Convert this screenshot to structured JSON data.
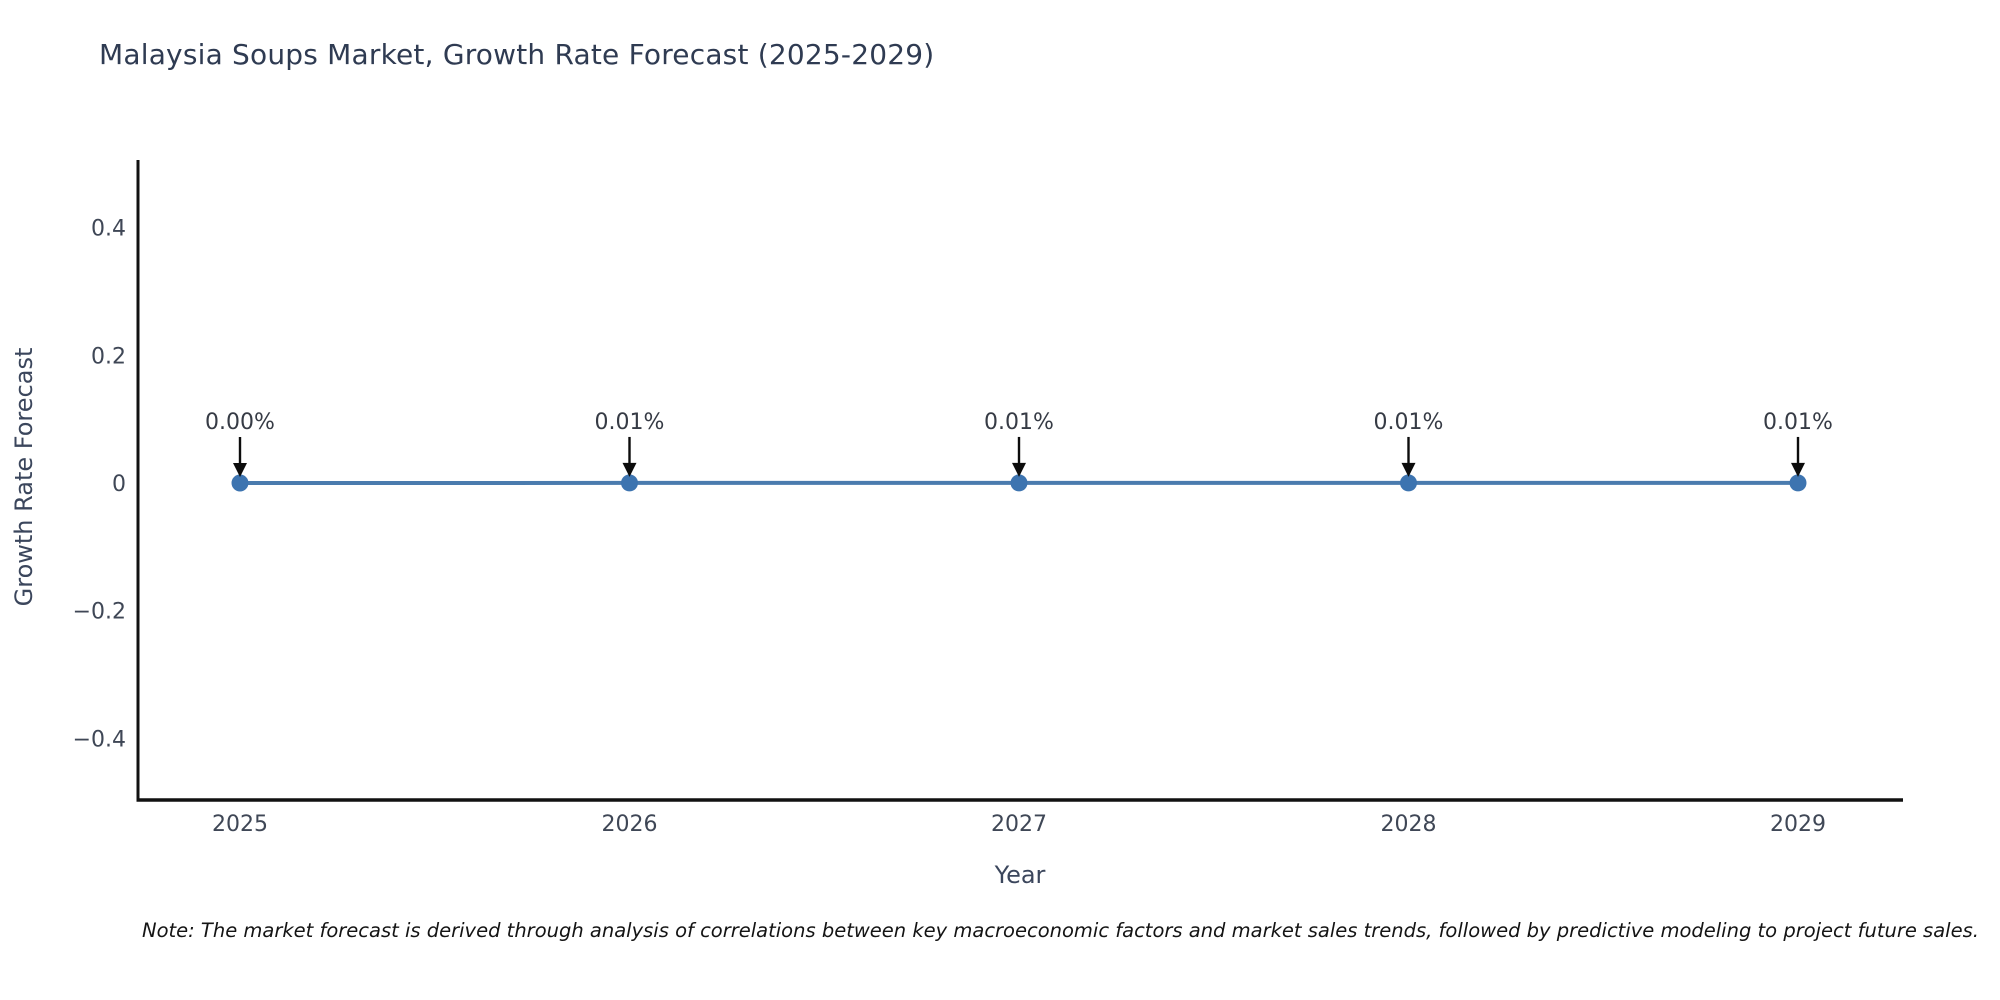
{
  "note": "Note: The market forecast is derived through analysis of correlations between key macroeconomic factors and market sales trends, followed by predictive modeling to project future sales.",
  "colors": {
    "background": "#ffffff",
    "axis": "#111111",
    "line": "#4a7bae",
    "marker": "#3d74b0",
    "tick_text": "#3f4756",
    "axis_label_text": "#3b465c",
    "title_text": "#2f3b52",
    "annotation_text": "#363b45",
    "arrow": "#0c0c0c",
    "note_text": "#141414"
  },
  "chart_data": {
    "type": "line",
    "title": "Malaysia Soups Market, Growth Rate Forecast (2025-2029)",
    "xlabel": "Year",
    "ylabel": "Growth Rate Forecast",
    "x": [
      2025,
      2026,
      2027,
      2028,
      2029
    ],
    "xticklabels": [
      "2025",
      "2026",
      "2027",
      "2028",
      "2029"
    ],
    "values": [
      0.0,
      0.0001,
      0.0001,
      0.0001,
      0.0001
    ],
    "point_labels": [
      "0.00%",
      "0.01%",
      "0.01%",
      "0.01%",
      "0.01%"
    ],
    "yticks": [
      {
        "value": 0.4,
        "label": "0.4"
      },
      {
        "value": 0.2,
        "label": "0.2"
      },
      {
        "value": 0.0,
        "label": "0"
      },
      {
        "value": -0.2,
        "label": "−0.2"
      },
      {
        "value": -0.4,
        "label": "−0.4"
      }
    ],
    "ylim": [
      -0.5,
      0.5
    ],
    "grid": false,
    "legend": false,
    "marker": "circle",
    "annotation_arrows": true
  }
}
